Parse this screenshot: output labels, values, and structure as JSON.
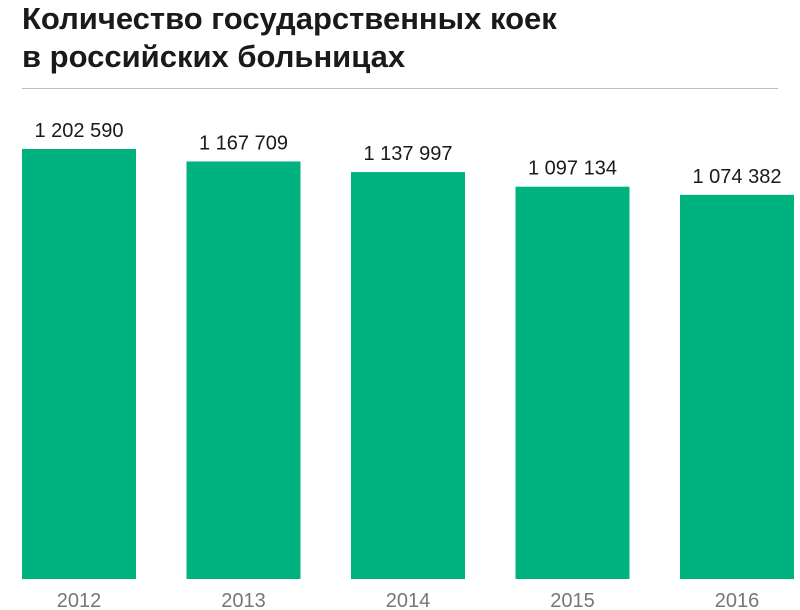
{
  "title_lines": [
    "Количество государственных коек",
    "в российских больницах"
  ],
  "colors": {
    "bar": "#00b27f",
    "value_text": "#1a1a1a",
    "axis_text": "#777777",
    "divider": "#bdbdbd"
  },
  "chart_data": {
    "type": "bar",
    "title": "Количество государственных коек в российских больницах",
    "categories": [
      "2012",
      "2013",
      "2014",
      "2015",
      "2016"
    ],
    "values": [
      1202590,
      1167709,
      1137997,
      1097134,
      1074382
    ],
    "value_labels": [
      "1 202 590",
      "1 167 709",
      "1 137 997",
      "1 097 134",
      "1 074 382"
    ],
    "xlabel": "",
    "ylabel": "",
    "ylim": [
      0,
      1202590
    ],
    "grid": false,
    "legend": "none"
  }
}
